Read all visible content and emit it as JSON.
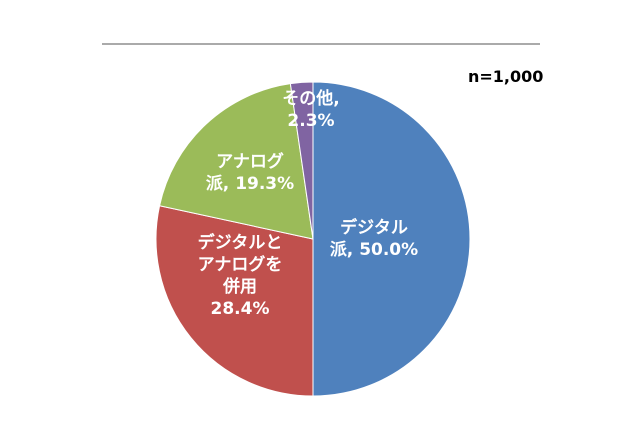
{
  "sample_size": "n=1,000",
  "chart_data": {
    "type": "pie",
    "title": "",
    "sample_size": "n=1,000",
    "start_angle_deg": 0,
    "direction": "clockwise",
    "slices": [
      {
        "label_lines": [
          "デジタル",
          "派, 50.0%"
        ],
        "category": "デジタル派",
        "value": 50.0,
        "color": "#4F81BD"
      },
      {
        "label_lines": [
          "デジタルと",
          "アナログを",
          "併用",
          "28.4%"
        ],
        "category": "デジタルとアナログを併用",
        "value": 28.4,
        "color": "#C0504D"
      },
      {
        "label_lines": [
          "アナログ",
          "派, 19.3%"
        ],
        "category": "アナログ派",
        "value": 19.3,
        "color": "#9BBB59"
      },
      {
        "label_lines": [
          "その他,",
          "2.3%"
        ],
        "category": "その他",
        "value": 2.3,
        "color": "#8064A2"
      }
    ]
  }
}
